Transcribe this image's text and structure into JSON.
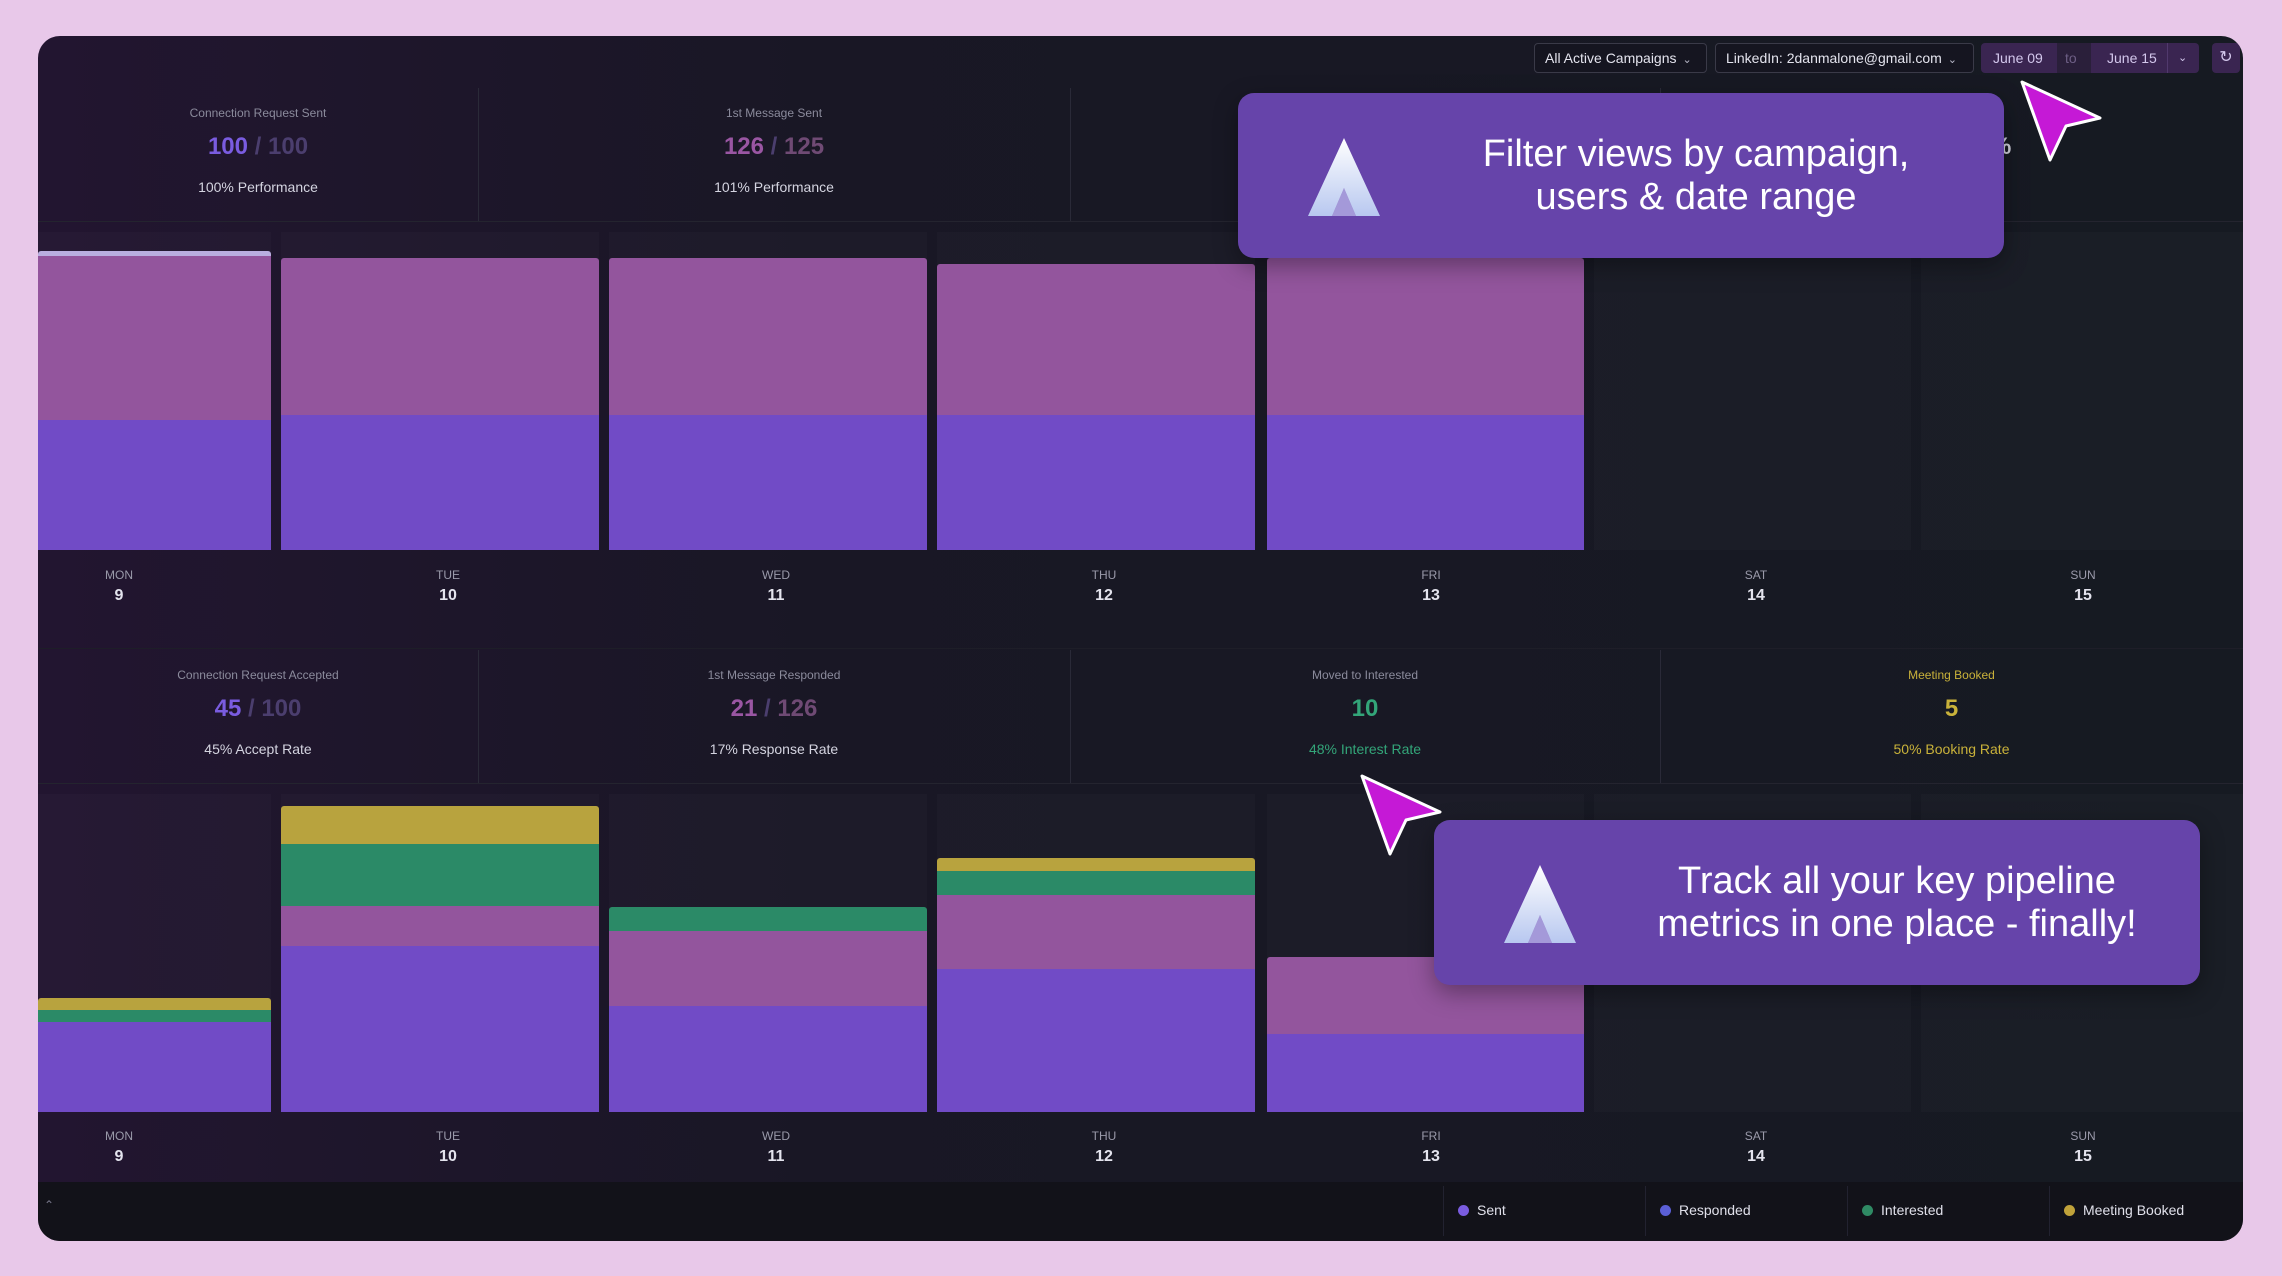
{
  "toolbar": {
    "campaign_filter": "All Active Campaigns",
    "account_filter": "LinkedIn: 2danmalone@gmail.com",
    "date_from": "June 09",
    "date_separator": "to",
    "date_to": "June 15"
  },
  "top_stats": [
    {
      "label": "Connection Request Sent",
      "value": "100",
      "target": "100",
      "sub": "100% Performance",
      "color": "#7a5ce0"
    },
    {
      "label": "1st Message Sent",
      "value": "126",
      "target": "125",
      "sub": "101% Performance",
      "color": "#9a56a3"
    },
    {
      "label": "",
      "value": "",
      "target": "",
      "sub": "",
      "color": "#7a5ce0"
    },
    {
      "label": "",
      "value": "%",
      "target": "",
      "sub": "",
      "color": "#d0d0dc"
    }
  ],
  "bottom_stats": [
    {
      "label": "Connection Request Accepted",
      "value": "45",
      "target": "100",
      "sub": "45% Accept Rate",
      "color": "#7a5ce0"
    },
    {
      "label": "1st Message Responded",
      "value": "21",
      "target": "126",
      "sub": "17% Response Rate",
      "color": "#9a56a3"
    },
    {
      "label": "Moved to Interested",
      "value": "10",
      "target": "",
      "sub": "48% Interest Rate",
      "color": "#33a579",
      "labelColor": "#8b8b9c",
      "subColor": "#33a579"
    },
    {
      "label": "Meeting Booked",
      "value": "5",
      "target": "",
      "sub": "50% Booking Rate",
      "color": "#c9b23a",
      "labelColor": "#c9b23a",
      "subColor": "#c9b23a"
    }
  ],
  "days": [
    {
      "dow": "MON",
      "num": "9"
    },
    {
      "dow": "TUE",
      "num": "10"
    },
    {
      "dow": "WED",
      "num": "11"
    },
    {
      "dow": "THU",
      "num": "12"
    },
    {
      "dow": "FRI",
      "num": "13"
    },
    {
      "dow": "SAT",
      "num": "14"
    },
    {
      "dow": "SUN",
      "num": "15"
    }
  ],
  "legend": [
    {
      "label": "Sent",
      "color": "#7a5ce0"
    },
    {
      "label": "Responded",
      "color": "#5b5fd6"
    },
    {
      "label": "Interested",
      "color": "#2f8a64"
    },
    {
      "label": "Meeting Booked",
      "color": "#c0a23a"
    }
  ],
  "colors": {
    "sent": "#714bc6",
    "responded": "#93559d",
    "interested": "#2b8a67",
    "booked": "#b8a33e",
    "callout": "#6644aa",
    "cursor": "#c519d6"
  },
  "callouts": {
    "top_line1": "Filter views by campaign,",
    "top_line2": "users & date range",
    "bottom_line1": "Track all your key pipeline",
    "bottom_line2": "metrics in one place - finally!"
  }
}
